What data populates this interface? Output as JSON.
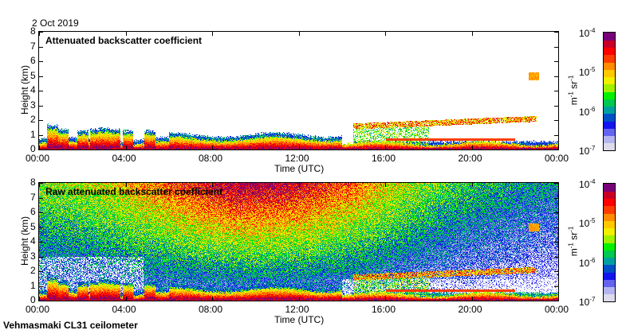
{
  "header": {
    "date": "2 Oct 2019"
  },
  "footer": {
    "instrument": "Vehmasmaki CL31 ceilometer"
  },
  "chart_data": [
    {
      "type": "heatmap",
      "title": "Attenuated backscatter coefficient",
      "xlabel": "Time (UTC)",
      "ylabel": "Height (km)",
      "xticks": [
        "00:00",
        "04:00",
        "08:00",
        "12:00",
        "16:00",
        "20:00",
        "00:00"
      ],
      "yticks": [
        "0",
        "1",
        "2",
        "3",
        "4",
        "5",
        "6",
        "7",
        "8"
      ],
      "ylim": [
        0,
        8
      ],
      "xlim_hours": [
        0,
        24
      ],
      "colorbar": {
        "label_base": "m",
        "label_exp1": "-1",
        "label_unit2": " sr",
        "label_exp2": "-1",
        "ticks": [
          {
            "base": "10",
            "exp": "-4"
          },
          {
            "base": "10",
            "exp": "-5"
          },
          {
            "base": "10",
            "exp": "-6"
          },
          {
            "base": "10",
            "exp": "-7"
          }
        ],
        "range_log10": [
          -7,
          -4
        ],
        "scale": "log"
      },
      "features": "boundary layer below ~1 km all day; cloud layer ~1.5-2 km from 14:30 to 23:00; isolated layer ~5 km near 23:00"
    },
    {
      "type": "heatmap",
      "title": "Raw attenuated backscatter coefficient",
      "xlabel": "Time (UTC)",
      "ylabel": "Height (km)",
      "xticks": [
        "00:00",
        "04:00",
        "08:00",
        "12:00",
        "16:00",
        "20:00",
        "00:00"
      ],
      "yticks": [
        "0",
        "1",
        "2",
        "3",
        "4",
        "5",
        "6",
        "7",
        "8"
      ],
      "ylim": [
        0,
        8
      ],
      "xlim_hours": [
        0,
        24
      ],
      "colorbar": {
        "label_base": "m",
        "label_exp1": "-1",
        "label_unit2": " sr",
        "label_exp2": "-1",
        "ticks": [
          {
            "base": "10",
            "exp": "-4"
          },
          {
            "base": "10",
            "exp": "-5"
          },
          {
            "base": "10",
            "exp": "-6"
          },
          {
            "base": "10",
            "exp": "-7"
          }
        ],
        "range_log10": [
          -7,
          -4
        ],
        "scale": "log"
      }
    }
  ],
  "colormap": [
    "#dcdcec",
    "#b4b4f0",
    "#6464f0",
    "#1414f0",
    "#0050c8",
    "#00a0a0",
    "#00c850",
    "#00f000",
    "#a0f000",
    "#f0f000",
    "#ffc800",
    "#ff8c00",
    "#ff3c00",
    "#ff0000",
    "#c80028",
    "#780078"
  ]
}
